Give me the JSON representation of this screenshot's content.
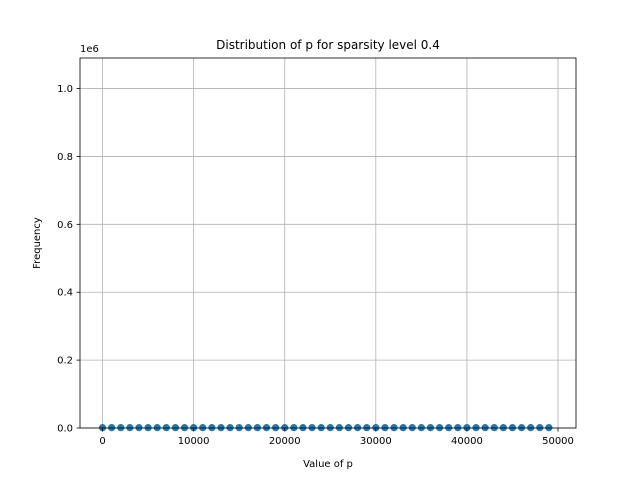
{
  "chart_data": {
    "type": "scatter",
    "title": "Distribution of p for sparsity level 0.4",
    "xlabel": "Value of p",
    "ylabel": "Frequency",
    "y_offset_label": "1e6",
    "xlim": [
      -2475,
      51975
    ],
    "ylim": [
      0,
      1090000
    ],
    "x_ticks": [
      0,
      10000,
      20000,
      30000,
      40000,
      50000
    ],
    "x_tick_labels": [
      "0",
      "10000",
      "20000",
      "30000",
      "40000",
      "50000"
    ],
    "y_ticks": [
      0,
      200000,
      400000,
      600000,
      800000,
      1000000
    ],
    "y_tick_labels": [
      "0.0",
      "0.2",
      "0.4",
      "0.6",
      "0.8",
      "1.0"
    ],
    "grid": true,
    "marker_color": "#1f77b4",
    "series": [
      {
        "x": [
          0,
          1000,
          2000,
          3000,
          4000,
          5000,
          6000,
          7000,
          8000,
          9000,
          10000,
          11000,
          12000,
          13000,
          14000,
          15000,
          16000,
          17000,
          18000,
          19000,
          20000,
          21000,
          22000,
          23000,
          24000,
          25000,
          26000,
          27000,
          28000,
          29000,
          30000,
          31000,
          32000,
          33000,
          34000,
          35000,
          36000,
          37000,
          38000,
          39000,
          40000,
          41000,
          42000,
          43000,
          44000,
          45000,
          46000,
          47000,
          48000,
          49000
        ],
        "y": [
          1000,
          1000,
          1000,
          1000,
          1000,
          1000,
          1000,
          1000,
          1000,
          1000,
          1000,
          1000,
          1000,
          1000,
          1000,
          1000,
          1000,
          1000,
          1000,
          1000,
          1000,
          1000,
          1000,
          1000,
          1000,
          1000,
          1000,
          1000,
          1000,
          1000,
          1000,
          1000,
          1000,
          1000,
          1000,
          1000,
          1000,
          1000,
          1000,
          1000,
          1000,
          1000,
          1000,
          1000,
          1000,
          1000,
          1000,
          1000,
          1000,
          1000
        ]
      }
    ]
  }
}
